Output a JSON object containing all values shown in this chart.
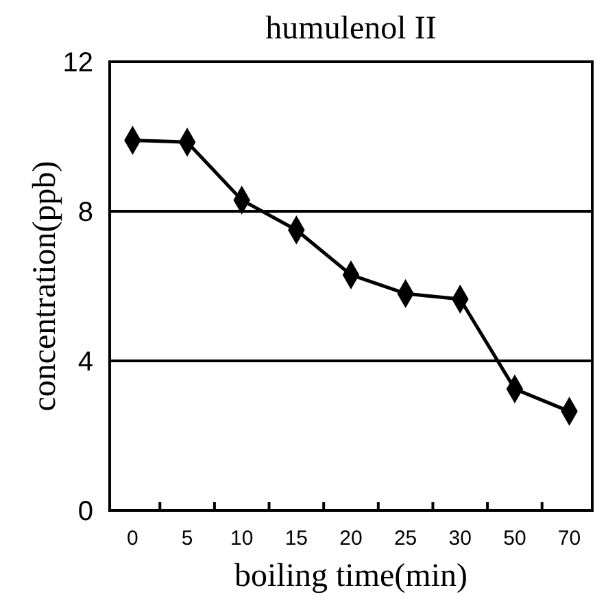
{
  "chart_data": {
    "type": "line",
    "title": "humulenol II",
    "xlabel": "boiling time(min)",
    "ylabel": "concentration(ppb)",
    "categories": [
      "0",
      "5",
      "10",
      "15",
      "20",
      "25",
      "30",
      "50",
      "70"
    ],
    "series": [
      {
        "color": "#000000",
        "values": [
          9.9,
          9.85,
          8.3,
          7.5,
          6.3,
          5.8,
          5.65,
          3.25,
          2.65
        ]
      }
    ],
    "ylim": [
      0,
      12
    ],
    "yticks": [
      0,
      4,
      8,
      12
    ],
    "grid": "y",
    "marker": "diamond",
    "line_style": "solid"
  }
}
